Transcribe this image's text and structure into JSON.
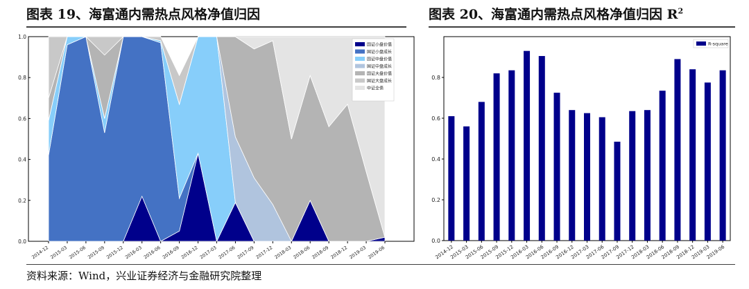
{
  "titles": {
    "left": "图表 19、海富通内需热点风格净值归因",
    "right_main": "图表 20、海富通内需热点风格净值归因 R",
    "right_sup": "2"
  },
  "source": "资料来源：Wind，兴业证券经济与金融研究院整理",
  "chart_data": [
    {
      "type": "area",
      "stacked": true,
      "x": [
        "2014-12",
        "2015-03",
        "2015-06",
        "2015-09",
        "2015-12",
        "2016-03",
        "2016-06",
        "2016-09",
        "2016-12",
        "2017-03",
        "2017-06",
        "2017-09",
        "2017-12",
        "2018-03",
        "2018-06",
        "2018-09",
        "2018-12",
        "2019-03",
        "2019-06"
      ],
      "ylim": [
        0,
        1.0
      ],
      "yticks": [
        0.0,
        0.2,
        0.4,
        0.6,
        0.8,
        1.0
      ],
      "ytick_labels": [
        "0.0",
        "0.2",
        "0.4",
        "0.6",
        "0.8",
        "1.0"
      ],
      "legend_position": "top-right",
      "grid": false,
      "series": [
        {
          "name": "国证小盘价值",
          "color": "#00008b",
          "values": [
            0,
            0,
            0,
            0,
            0,
            0.22,
            0,
            0.05,
            0.43,
            0,
            0.19,
            0,
            0,
            0,
            0.2,
            0,
            0,
            0,
            0.02
          ]
        },
        {
          "name": "国证小盘成长",
          "color": "#4472c4",
          "values": [
            0.42,
            0.96,
            1.0,
            0.53,
            1.0,
            0.78,
            0.97,
            0.16,
            0,
            0,
            0,
            0,
            0,
            0,
            0,
            0,
            0,
            0,
            0
          ]
        },
        {
          "name": "国证中盘价值",
          "color": "#87cefa",
          "values": [
            0.17,
            0.04,
            0,
            0.07,
            0,
            0,
            0.01,
            0.46,
            0.57,
            1.0,
            0,
            0,
            0,
            0,
            0,
            0,
            0,
            0,
            0
          ]
        },
        {
          "name": "国证中盘成长",
          "color": "#b0c4de",
          "values": [
            0,
            0,
            0,
            0,
            0,
            0,
            0,
            0,
            0,
            0,
            0.32,
            0.31,
            0.18,
            0,
            0,
            0,
            0,
            0,
            0
          ]
        },
        {
          "name": "国证大盘价值",
          "color": "#b4b4b4",
          "values": [
            0.11,
            0,
            0,
            0.31,
            0,
            0,
            0,
            0,
            0,
            0,
            0.49,
            0.63,
            0.8,
            0.5,
            0.61,
            0.56,
            0.67,
            0.34,
            0
          ]
        },
        {
          "name": "国证大盘成长",
          "color": "#c8c8c8",
          "values": [
            0.3,
            0,
            0,
            0.09,
            0,
            0,
            0.02,
            0.14,
            0,
            0,
            0,
            0,
            0,
            0,
            0,
            0,
            0,
            0,
            0
          ]
        },
        {
          "name": "中证全债",
          "color": "#e4e4e4",
          "values": [
            0,
            0,
            0,
            0,
            0,
            0,
            0,
            0,
            0,
            0,
            0,
            0.06,
            0.02,
            0.5,
            0.19,
            0.44,
            0.33,
            0.66,
            0.98
          ]
        }
      ]
    },
    {
      "type": "bar",
      "categories": [
        "2014-12",
        "2015-03",
        "2015-06",
        "2015-09",
        "2015-12",
        "2016-03",
        "2016-06",
        "2016-09",
        "2016-12",
        "2017-03",
        "2017-06",
        "2017-09",
        "2017-12",
        "2018-03",
        "2018-06",
        "2018-09",
        "2018-12",
        "2019-03",
        "2019-06"
      ],
      "series": [
        {
          "name": "R-square",
          "color": "#00008b",
          "values": [
            0.61,
            0.56,
            0.68,
            0.82,
            0.835,
            0.93,
            0.905,
            0.725,
            0.64,
            0.625,
            0.605,
            0.485,
            0.635,
            0.64,
            0.735,
            0.89,
            0.84,
            0.775,
            0.835
          ]
        }
      ],
      "ylim": [
        0,
        1.0
      ],
      "yticks": [
        0.0,
        0.2,
        0.4,
        0.6,
        0.8
      ],
      "ytick_labels": [
        "0.0",
        "0.2",
        "0.4",
        "0.6",
        "0.8"
      ],
      "legend_position": "top-right",
      "grid": false
    }
  ]
}
